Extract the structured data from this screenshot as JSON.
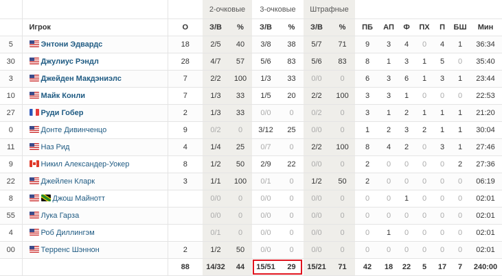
{
  "groups": {
    "two": "2-очковые",
    "three": "3-очковые",
    "ft": "Штрафные"
  },
  "headers": [
    "",
    "Игрок",
    "О",
    "З/В",
    "%",
    "З/В",
    "%",
    "З/В",
    "%",
    "ПБ",
    "АП",
    "Ф",
    "ПХ",
    "П",
    "БШ",
    "Мин"
  ],
  "colors": {
    "link": "#1e5a82",
    "shade": "#efeeea",
    "highlight": "#e0141e"
  },
  "rows": [
    {
      "num": "5",
      "flags": [
        "us"
      ],
      "name": "Энтони Эдвардс",
      "starter": true,
      "stats": [
        "18",
        "2/5",
        "40",
        "3/8",
        "38",
        "5/7",
        "71",
        "9",
        "3",
        "4",
        "0",
        "4",
        "1",
        "36:34"
      ]
    },
    {
      "num": "30",
      "flags": [
        "us"
      ],
      "name": "Джулиус Рэндл",
      "starter": true,
      "stats": [
        "28",
        "4/7",
        "57",
        "5/6",
        "83",
        "5/6",
        "83",
        "8",
        "1",
        "3",
        "1",
        "5",
        "0",
        "35:40"
      ]
    },
    {
      "num": "3",
      "flags": [
        "us"
      ],
      "name": "Джейден Макдэниэлс",
      "starter": true,
      "stats": [
        "7",
        "2/2",
        "100",
        "1/3",
        "33",
        "0/0",
        "0",
        "6",
        "3",
        "6",
        "1",
        "3",
        "1",
        "23:44"
      ]
    },
    {
      "num": "10",
      "flags": [
        "us"
      ],
      "name": "Майк Конли",
      "starter": true,
      "stats": [
        "7",
        "1/3",
        "33",
        "1/5",
        "20",
        "2/2",
        "100",
        "3",
        "3",
        "1",
        "0",
        "0",
        "0",
        "22:53"
      ]
    },
    {
      "num": "27",
      "flags": [
        "fr"
      ],
      "name": "Руди Гобер",
      "starter": true,
      "stats": [
        "2",
        "1/3",
        "33",
        "0/0",
        "0",
        "0/2",
        "0",
        "3",
        "1",
        "2",
        "1",
        "1",
        "1",
        "21:20"
      ]
    },
    {
      "num": "0",
      "flags": [
        "us"
      ],
      "name": "Донте Дивинченцо",
      "starter": false,
      "stats": [
        "9",
        "0/2",
        "0",
        "3/12",
        "25",
        "0/0",
        "0",
        "1",
        "2",
        "3",
        "2",
        "1",
        "1",
        "30:04"
      ]
    },
    {
      "num": "11",
      "flags": [
        "us"
      ],
      "name": "Наз Рид",
      "starter": false,
      "stats": [
        "4",
        "1/4",
        "25",
        "0/7",
        "0",
        "2/2",
        "100",
        "8",
        "4",
        "2",
        "0",
        "3",
        "1",
        "27:46"
      ]
    },
    {
      "num": "9",
      "flags": [
        "ca"
      ],
      "name": "Никил Александер-Уокер",
      "starter": false,
      "stats": [
        "8",
        "1/2",
        "50",
        "2/9",
        "22",
        "0/0",
        "0",
        "2",
        "0",
        "0",
        "0",
        "0",
        "2",
        "27:36"
      ]
    },
    {
      "num": "22",
      "flags": [
        "us"
      ],
      "name": "Джейлен Кларк",
      "starter": false,
      "stats": [
        "3",
        "1/1",
        "100",
        "0/1",
        "0",
        "1/2",
        "50",
        "2",
        "0",
        "0",
        "0",
        "0",
        "0",
        "06:19"
      ]
    },
    {
      "num": "8",
      "flags": [
        "us",
        "jm"
      ],
      "name": "Джош Майнотт",
      "starter": false,
      "stats": [
        "",
        "0/0",
        "0",
        "0/0",
        "0",
        "0/0",
        "0",
        "0",
        "0",
        "1",
        "0",
        "0",
        "0",
        "02:01"
      ]
    },
    {
      "num": "55",
      "flags": [
        "us"
      ],
      "name": "Лука Гарза",
      "starter": false,
      "stats": [
        "",
        "0/0",
        "0",
        "0/0",
        "0",
        "0/0",
        "0",
        "0",
        "0",
        "0",
        "0",
        "0",
        "0",
        "02:01"
      ]
    },
    {
      "num": "4",
      "flags": [
        "us"
      ],
      "name": "Роб Диллингэм",
      "starter": false,
      "stats": [
        "",
        "0/1",
        "0",
        "0/0",
        "0",
        "0/0",
        "0",
        "0",
        "1",
        "0",
        "0",
        "0",
        "0",
        "02:01"
      ]
    },
    {
      "num": "00",
      "flags": [
        "us"
      ],
      "name": "Терренс Шэннон",
      "starter": false,
      "stats": [
        "2",
        "1/2",
        "50",
        "0/0",
        "0",
        "0/0",
        "0",
        "0",
        "0",
        "0",
        "0",
        "0",
        "0",
        "02:01"
      ]
    }
  ],
  "totals": [
    "88",
    "14/32",
    "44",
    "15/51",
    "29",
    "15/21",
    "71",
    "42",
    "18",
    "22",
    "5",
    "17",
    "7",
    "240:00"
  ]
}
